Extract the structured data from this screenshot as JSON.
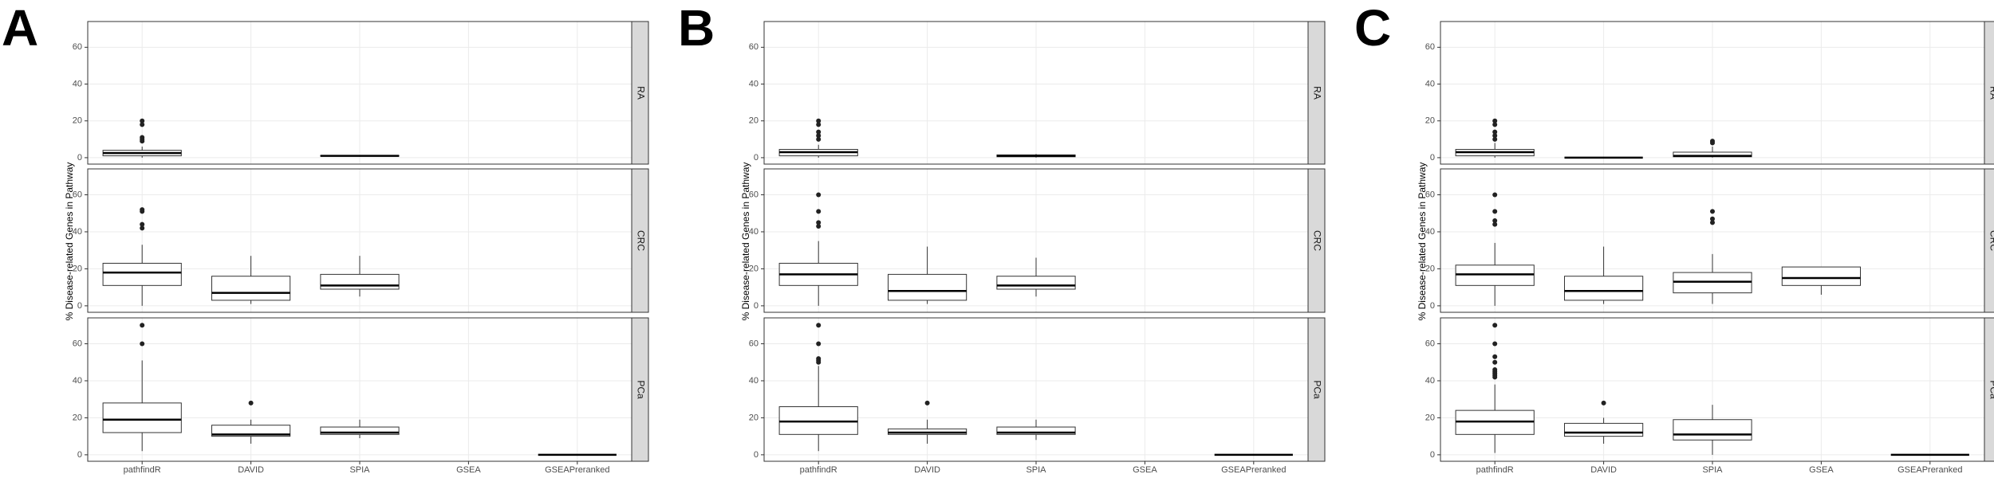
{
  "chart_data": [
    {
      "type": "box",
      "panel_label": "A",
      "ylabel": "% Disease-related Genes in Pathway",
      "categories": [
        "pathfindR",
        "DAVID",
        "SPIA",
        "GSEA",
        "GSEAPreranked"
      ],
      "ylim": [
        -3.5,
        74
      ],
      "yticks": [
        0,
        20,
        40,
        60
      ],
      "grid": true,
      "facets": [
        {
          "name": "RA",
          "boxes": [
            {
              "min": 0,
              "q1": 1,
              "median": 2.5,
              "q3": 4,
              "max": 6,
              "outliers": [
                9,
                10,
                11,
                18,
                20
              ]
            },
            null,
            {
              "min": 0.5,
              "q1": 0.8,
              "median": 1,
              "q3": 1.2,
              "max": 1.5,
              "outliers": []
            },
            null,
            null
          ]
        },
        {
          "name": "CRC",
          "boxes": [
            {
              "min": 0,
              "q1": 11,
              "median": 18,
              "q3": 23,
              "max": 33,
              "outliers": [
                42,
                44,
                51,
                52
              ]
            },
            {
              "min": 1,
              "q1": 3,
              "median": 7,
              "q3": 16,
              "max": 27,
              "outliers": []
            },
            {
              "min": 5,
              "q1": 9,
              "median": 11,
              "q3": 17,
              "max": 27,
              "outliers": []
            },
            null,
            null
          ]
        },
        {
          "name": "PCa",
          "boxes": [
            {
              "min": 2,
              "q1": 12,
              "median": 19,
              "q3": 28,
              "max": 51,
              "outliers": [
                60,
                70
              ]
            },
            {
              "min": 6,
              "q1": 10,
              "median": 11,
              "q3": 16,
              "max": 19,
              "outliers": [
                28
              ]
            },
            {
              "min": 9,
              "q1": 11,
              "median": 12,
              "q3": 15,
              "max": 19,
              "outliers": []
            },
            null,
            {
              "min": 0,
              "q1": 0,
              "median": 0,
              "q3": 0,
              "max": 0,
              "outliers": []
            }
          ]
        }
      ]
    },
    {
      "type": "box",
      "panel_label": "B",
      "ylabel": "% Disease-related Genes in Pathway",
      "categories": [
        "pathfindR",
        "DAVID",
        "SPIA",
        "GSEA",
        "GSEAPreranked"
      ],
      "ylim": [
        -3.5,
        74
      ],
      "yticks": [
        0,
        20,
        40,
        60
      ],
      "grid": true,
      "facets": [
        {
          "name": "RA",
          "boxes": [
            {
              "min": 0,
              "q1": 1,
              "median": 3,
              "q3": 4.5,
              "max": 7,
              "outliers": [
                10,
                12,
                14,
                18,
                20
              ]
            },
            null,
            {
              "min": 0,
              "q1": 0.5,
              "median": 1,
              "q3": 1.5,
              "max": 2,
              "outliers": []
            },
            null,
            null
          ]
        },
        {
          "name": "CRC",
          "boxes": [
            {
              "min": 0,
              "q1": 11,
              "median": 17,
              "q3": 23,
              "max": 35,
              "outliers": [
                43,
                45,
                51,
                60
              ]
            },
            {
              "min": 1,
              "q1": 3,
              "median": 8,
              "q3": 17,
              "max": 32,
              "outliers": []
            },
            {
              "min": 5,
              "q1": 9,
              "median": 11,
              "q3": 16,
              "max": 26,
              "outliers": []
            },
            null,
            null
          ]
        },
        {
          "name": "PCa",
          "boxes": [
            {
              "min": 2,
              "q1": 11,
              "median": 18,
              "q3": 26,
              "max": 48,
              "outliers": [
                50,
                51,
                52,
                60,
                70
              ]
            },
            {
              "min": 6,
              "q1": 11,
              "median": 12,
              "q3": 14,
              "max": 19,
              "outliers": [
                28
              ]
            },
            {
              "min": 8,
              "q1": 11,
              "median": 12,
              "q3": 15,
              "max": 19,
              "outliers": []
            },
            null,
            {
              "min": 0,
              "q1": 0,
              "median": 0,
              "q3": 0,
              "max": 0,
              "outliers": []
            }
          ]
        }
      ]
    },
    {
      "type": "box",
      "panel_label": "C",
      "ylabel": "% Disease-related Genes in Pathway",
      "categories": [
        "pathfindR",
        "DAVID",
        "SPIA",
        "GSEA",
        "GSEAPreranked"
      ],
      "ylim": [
        -3.5,
        74
      ],
      "yticks": [
        0,
        20,
        40,
        60
      ],
      "grid": true,
      "facets": [
        {
          "name": "RA",
          "boxes": [
            {
              "min": 0,
              "q1": 1,
              "median": 3,
              "q3": 4.5,
              "max": 8,
              "outliers": [
                10,
                12,
                14,
                18,
                20
              ]
            },
            {
              "min": 0,
              "q1": 0,
              "median": 0,
              "q3": 0,
              "max": 0,
              "outliers": []
            },
            {
              "min": 0,
              "q1": 0.5,
              "median": 1,
              "q3": 3,
              "max": 6,
              "outliers": [
                8,
                9
              ]
            },
            null,
            null
          ]
        },
        {
          "name": "CRC",
          "boxes": [
            {
              "min": 0,
              "q1": 11,
              "median": 17,
              "q3": 22,
              "max": 34,
              "outliers": [
                44,
                46,
                51,
                60
              ]
            },
            {
              "min": 1,
              "q1": 3,
              "median": 8,
              "q3": 16,
              "max": 32,
              "outliers": []
            },
            {
              "min": 1,
              "q1": 7,
              "median": 13,
              "q3": 18,
              "max": 28,
              "outliers": [
                45,
                47,
                51
              ]
            },
            {
              "min": 6,
              "q1": 11,
              "median": 15,
              "q3": 21,
              "max": 21,
              "outliers": []
            },
            null
          ]
        },
        {
          "name": "PCa",
          "boxes": [
            {
              "min": 1,
              "q1": 11,
              "median": 18,
              "q3": 24,
              "max": 38,
              "outliers": [
                42,
                43,
                44,
                45,
                46,
                50,
                53,
                60,
                70
              ]
            },
            {
              "min": 6,
              "q1": 10,
              "median": 12,
              "q3": 17,
              "max": 20,
              "outliers": [
                28
              ]
            },
            {
              "min": 0,
              "q1": 8,
              "median": 11,
              "q3": 19,
              "max": 27,
              "outliers": []
            },
            null,
            {
              "min": 0,
              "q1": 0,
              "median": 0,
              "q3": 0,
              "max": 0,
              "outliers": []
            }
          ]
        }
      ]
    }
  ]
}
